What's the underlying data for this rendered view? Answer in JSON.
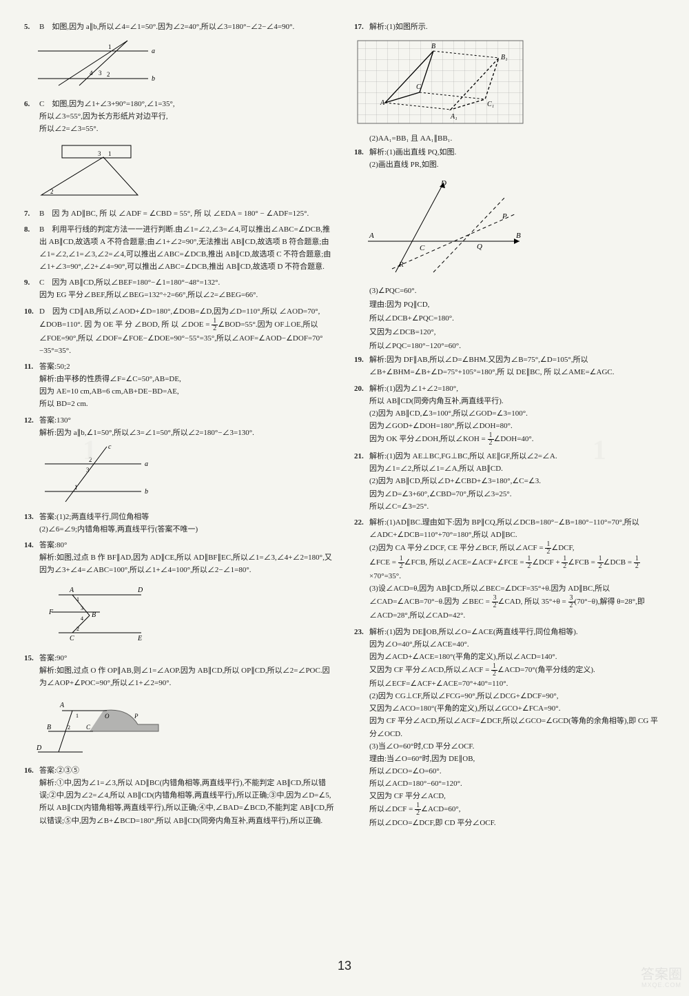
{
  "page_number": "13",
  "watermark_main": "答案圈",
  "watermark_sub": "MXQE.COM",
  "left": [
    {
      "n": "5.",
      "t": [
        "B　如图,因为 a∥b,所以∠4=∠1=50°.因为∠2=40°,所以∠3=180°−∠2−∠4=90°."
      ]
    },
    {
      "n": "",
      "diag": "d5"
    },
    {
      "n": "6.",
      "t": [
        "C　如图,因为∠1+∠3+90°=180°,∠1=35°,",
        "所以∠3=55°,因为长方形纸片对边平行,",
        "所以∠2=∠3=55°."
      ]
    },
    {
      "n": "",
      "diag": "d6"
    },
    {
      "n": "7.",
      "t": [
        "B　因 为 AD∥BC, 所 以 ∠ADF = ∠CBD = 55°, 所 以 ∠EDA = 180° − ∠ADF=125°."
      ]
    },
    {
      "n": "8.",
      "t": [
        "B　利用平行线的判定方法一一进行判断.由∠1=∠2,∠3=∠4,可以推出∠ABC=∠DCB,推出 AB∥CD,故选项 A 不符合题意;由∠1+∠2=90°,无法推出 AB∥CD,故选项 B 符合题意;由∠1=∠2,∠1=∠3,∠2=∠4,可以推出∠ABC=∠DCB,推出 AB∥CD,故选项 C 不符合题意;由∠1+∠3=90°,∠2+∠4=90°,可以推出∠ABC=∠DCB,推出 AB∥CD,故选项 D 不符合题意."
      ]
    },
    {
      "n": "9.",
      "t": [
        "C　因为 AB∥CD,所以∠BEF=180°−∠1=180°−48°=132°.",
        "因为 EG 平分∠BEF,所以∠BEG=132°÷2=66°,所以∠2=∠BEG=66°."
      ]
    },
    {
      "n": "10.",
      "t": [
        "D　因为 CD∥AB,所以∠AOD+∠D=180°,∠DOB=∠D,因为∠D=110°,所以 ∠AOD=70°, ∠DOB=110°. 因 为 OE 平 分 ∠BOD, 所 以 ∠DOE = <span class='frac'><span class='n'>1</span><span class='d'>2</span></span>∠BOD=55°.因为 OF⊥OE,所以 ∠FOE=90°,所以 ∠DOF=∠FOE−∠DOE=90°−55°=35°,所以∠AOF=∠AOD−∠DOF=70°−35°=35°."
      ]
    },
    {
      "n": "11.",
      "t": [
        "答案:50;2",
        "解析:由平移的性质得∠F=∠C=50°,AB=DE,",
        "因为 AE=10 cm,AB=6 cm,AB+DE−BD=AE,",
        "所以 BD=2 cm."
      ]
    },
    {
      "n": "12.",
      "t": [
        "答案:130°",
        "解析:因为 a∥b,∠1=50°,所以∠3=∠1=50°,所以∠2=180°−∠3=130°."
      ]
    },
    {
      "n": "",
      "diag": "d12"
    },
    {
      "n": "13.",
      "t": [
        "答案:(1)2;两直线平行,同位角相等",
        "(2)∠6=∠9;内错角相等,两直线平行(答案不唯一)"
      ]
    },
    {
      "n": "14.",
      "t": [
        "答案:80°",
        "解析:如图,过点 B 作 BF∥AD,因为 AD∥CE,所以 AD∥BF∥EC,所以∠1=∠3,∠4+∠2=180°,又因为∠3+∠4=∠ABC=100°,所以∠1+∠4=100°,所以∠2−∠1=80°."
      ]
    },
    {
      "n": "",
      "diag": "d14"
    },
    {
      "n": "15.",
      "t": [
        "答案:90°",
        "解析:如图,过点 O 作 OP∥AB,则∠1=∠AOP.因为 AB∥CD,所以 OP∥CD,所以∠2=∠POC.因为∠AOP+∠POC=90°,所以∠1+∠2=90°."
      ]
    },
    {
      "n": "",
      "diag": "d15"
    },
    {
      "n": "16.",
      "t": [
        "答案:②③⑤",
        "解析:①中,因为∠1=∠3,所以 AD∥BC(内错角相等,两直线平行),不能判定 AB∥CD,所以错误;②中,因为∠2=∠4,所以 AB∥CD(内错角相等,两直线平行),所以正确;③中,因为∠D=∠5,所以 AB∥CD(内错角相等,两直线平行),所以正确;④中,∠BAD=∠BCD,不能判定 AB∥CD,所以错误;⑤中,因为∠B+∠BCD=180°,所以 AB∥CD(同旁内角互补,两直线平行),所以正确."
      ]
    }
  ],
  "right": [
    {
      "n": "17.",
      "t": [
        "解析:(1)如图所示."
      ]
    },
    {
      "n": "",
      "diag": "d17"
    },
    {
      "n": "",
      "t": [
        "(2)AA₁=BB₁ 且 AA₁∥BB₁."
      ]
    },
    {
      "n": "18.",
      "t": [
        "解析:(1)画出直线 PQ,如图.",
        "(2)画出直线 PR,如图."
      ]
    },
    {
      "n": "",
      "diag": "d18"
    },
    {
      "n": "",
      "t": [
        "(3)∠PQC=60°.",
        "理由:因为 PQ∥CD,",
        "所以∠DCB+∠PQC=180°.",
        "又因为∠DCB=120°,",
        "所以∠PQC=180°−120°=60°."
      ]
    },
    {
      "n": "19.",
      "t": [
        "解析:因为 DF∥AB,所以∠D=∠BHM.又因为∠B=75°,∠D=105°,所以∠B+∠BHM=∠B+∠D=75°+105°=180°,所 以 DE∥BC, 所 以∠AME=∠AGC."
      ]
    },
    {
      "n": "20.",
      "t": [
        "解析:(1)因为∠1+∠2=180°,",
        "所以 AB∥CD(同旁内角互补,两直线平行).",
        "(2)因为 AB∥CD,∠3=100°,所以∠GOD=∠3=100°.",
        "因为∠GOD+∠DOH=180°,所以∠DOH=80°.",
        "因为 OK 平分∠DOH,所以∠KOH = <span class='frac'><span class='n'>1</span><span class='d'>2</span></span>∠DOH=40°."
      ]
    },
    {
      "n": "21.",
      "t": [
        "解析:(1)因为 AE⊥BC,FG⊥BC,所以 AE∥GF,所以∠2=∠A.",
        "因为∠1=∠2,所以∠1=∠A,所以 AB∥CD.",
        "(2)因为 AB∥CD,所以∠D+∠CBD+∠3=180°,∠C=∠3.",
        "因为∠D=∠3+60°,∠CBD=70°,所以∠3=25°.",
        "所以∠C=∠3=25°."
      ]
    },
    {
      "n": "22.",
      "t": [
        "解析:(1)AD∥BC.理由如下:因为 BP∥CQ,所以∠DCB=180°−∠B=180°−110°=70°,所以∠ADC+∠DCB=110°+70°=180°,所以 AD∥BC.",
        "(2)因为 CA 平分∠DCF, CE 平分∠BCF, 所以∠ACF = <span class='frac'><span class='n'>1</span><span class='d'>2</span></span>∠DCF,",
        "∠FCE = <span class='frac'><span class='n'>1</span><span class='d'>2</span></span>∠FCB, 所以∠ACE=∠ACF+∠FCE = <span class='frac'><span class='n'>1</span><span class='d'>2</span></span>∠DCF + <span class='frac'><span class='n'>1</span><span class='d'>2</span></span>∠FCB = <span class='frac'><span class='n'>1</span><span class='d'>2</span></span>∠DCB = <span class='frac'><span class='n'>1</span><span class='d'>2</span></span>×70°=35°.",
        "(3)设∠ACD=θ,因为 AB∥CD,所以∠BEC=∠DCF=35°+θ.因为 AD∥BC,所以∠CAD=∠ACB=70°−θ.因为 ∠BEC = <span class='frac'><span class='n'>3</span><span class='d'>2</span></span>∠CAD, 所以 35°+θ = <span class='frac'><span class='n'>3</span><span class='d'>2</span></span>(70°−θ),解得 θ=28°,即∠ACD=28°,所以∠CAD=42°."
      ]
    },
    {
      "n": "23.",
      "t": [
        "解析:(1)因为 DE∥OB,所以∠O=∠ACE(两直线平行,同位角相等).",
        "因为∠O=40°,所以∠ACE=40°.",
        "因为∠ACD+∠ACE=180°(平角的定义),所以∠ACD=140°.",
        "又因为 CF 平分∠ACD,所以∠ACF = <span class='frac'><span class='n'>1</span><span class='d'>2</span></span>∠ACD=70°(角平分线的定义).",
        "所以∠ECF=∠ACF+∠ACE=70°+40°=110°.",
        "(2)因为 CG⊥CF,所以∠FCG=90°,所以∠DCG+∠DCF=90°,",
        "又因为∠ACO=180°(平角的定义),所以∠GCO+∠FCA=90°.",
        "因为 CF 平分∠ACD,所以∠ACF=∠DCF,所以∠GCO=∠GCD(等角的余角相等),即 CG 平分∠OCD.",
        "(3)当∠O=60°时,CD 平分∠OCF.",
        "理由:当∠O=60°时,因为 DE∥OB,",
        "所以∠DCO=∠O=60°.",
        "所以∠ACD=180°−60°=120°.",
        "又因为 CF 平分∠ACD,",
        "所以∠DCF = <span class='frac'><span class='n'>1</span><span class='d'>2</span></span>∠ACD=60°,",
        "所以∠DCO=∠DCF,即 CD 平分∠OCF."
      ]
    }
  ]
}
